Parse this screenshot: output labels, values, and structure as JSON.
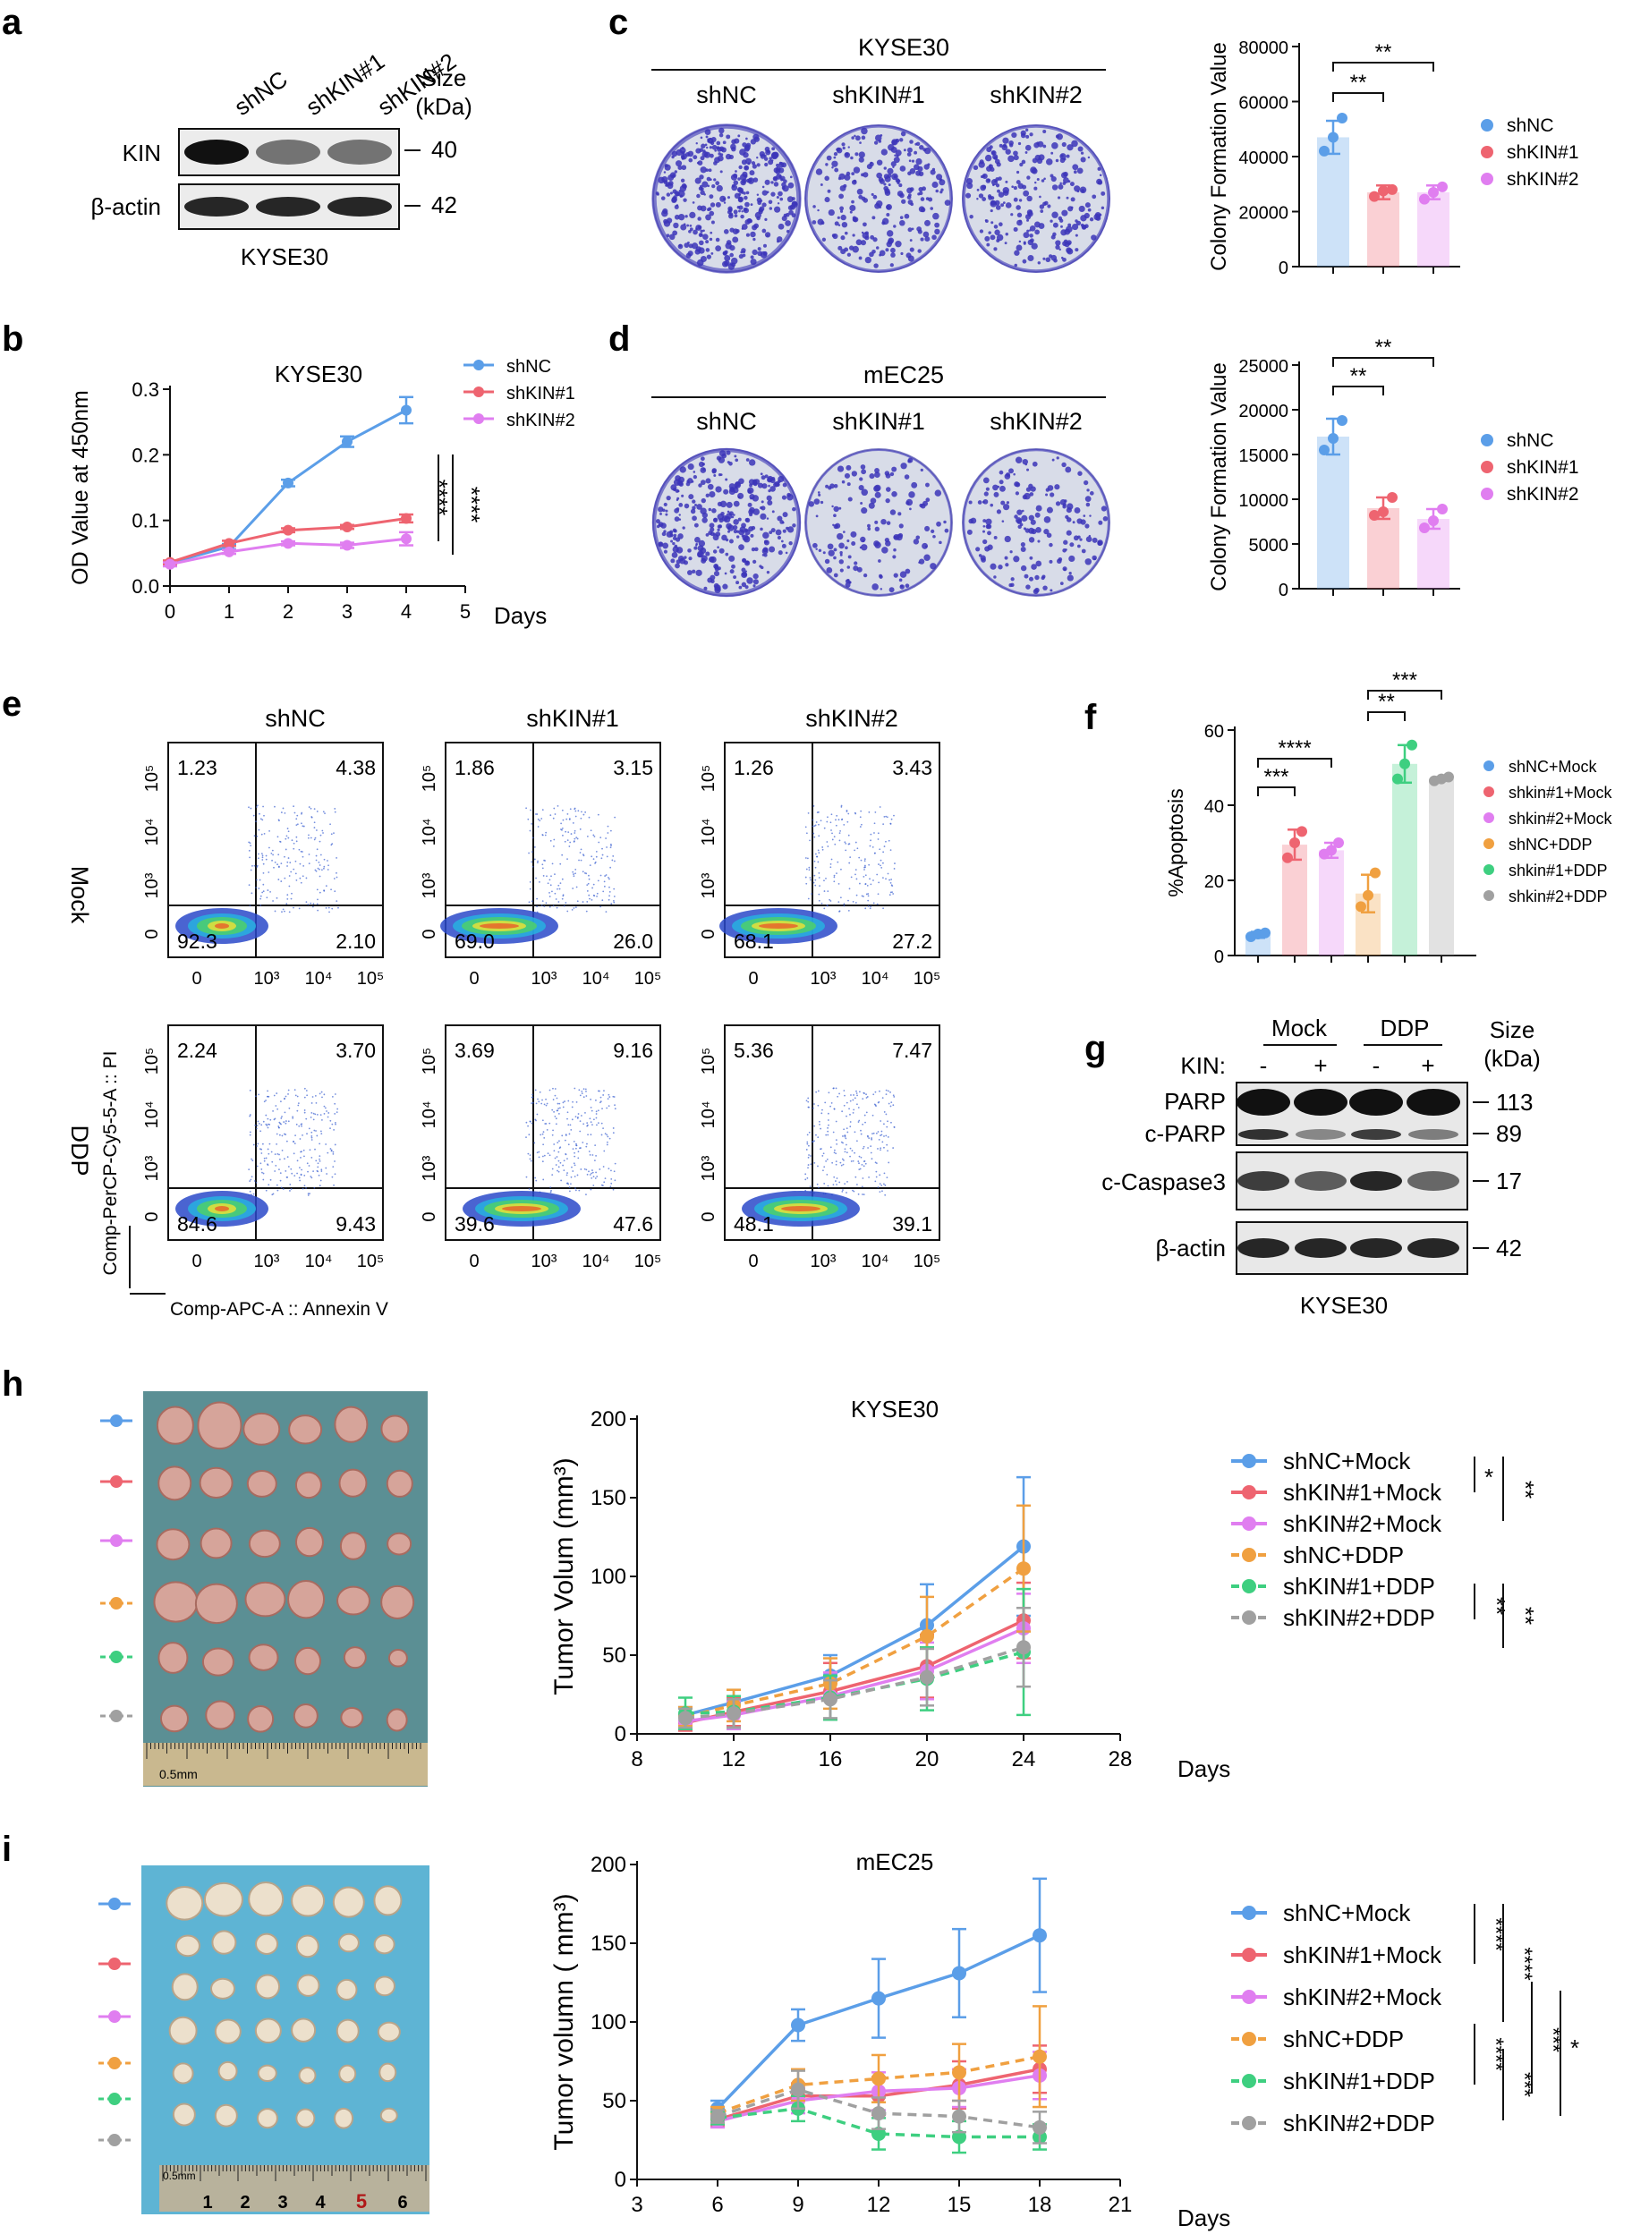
{
  "panels": {
    "a": {
      "letter": "a",
      "lanes": [
        "shNC",
        "shKIN#1",
        "shKIN#2"
      ],
      "size_header": [
        "Size",
        "(kDa)"
      ],
      "blots": [
        {
          "label": "KIN",
          "size": "40",
          "intensity": [
            1.0,
            0.55,
            0.55
          ]
        },
        {
          "label": "β-actin",
          "size": "42",
          "intensity": [
            0.9,
            0.9,
            0.9
          ]
        }
      ],
      "cell_line": "KYSE30"
    },
    "b": {
      "letter": "b",
      "sig": [
        "****",
        "****"
      ]
    },
    "c": {
      "letter": "c",
      "cell_line": "KYSE30",
      "plates": [
        "shNC",
        "shKIN#1",
        "shKIN#2"
      ],
      "plate_density": [
        0.9,
        0.55,
        0.6
      ],
      "sig": [
        "**",
        "**"
      ]
    },
    "d": {
      "letter": "d",
      "cell_line": "mEC25",
      "plates": [
        "shNC",
        "shKIN#1",
        "shKIN#2"
      ],
      "plate_density": [
        0.75,
        0.35,
        0.4
      ],
      "sig": [
        "**",
        "**"
      ]
    },
    "e": {
      "letter": "e",
      "columns": [
        "shNC",
        "shKIN#1",
        "shKIN#2"
      ],
      "rows": [
        "Mock",
        "DDP"
      ],
      "quadrants": [
        [
          [
            "1.23",
            "4.38",
            "92.3",
            "2.10"
          ],
          [
            "1.86",
            "3.15",
            "69.0",
            "26.0"
          ],
          [
            "1.26",
            "3.43",
            "68.1",
            "27.2"
          ]
        ],
        [
          [
            "2.24",
            "3.70",
            "84.6",
            "9.43"
          ],
          [
            "3.69",
            "9.16",
            "39.6",
            "47.6"
          ],
          [
            "5.36",
            "7.47",
            "48.1",
            "39.1"
          ]
        ]
      ],
      "y_ticks": [
        "0",
        "10³",
        "10⁴",
        "10⁵"
      ],
      "x_ticks": [
        "0",
        "10³",
        "10⁴",
        "10⁵"
      ],
      "y_axis_label": "Comp-PerCP-Cy5-5-A :: PI",
      "x_axis_label": "Comp-APC-A :: Annexin V"
    },
    "f": {
      "letter": "f",
      "sig": [
        "***",
        "****",
        "**",
        "***"
      ]
    },
    "g": {
      "letter": "g",
      "groups": [
        "Mock",
        "DDP"
      ],
      "kin_label": "KIN:",
      "kin_states": [
        "-",
        "+",
        "-",
        "+"
      ],
      "size_header": [
        "Size",
        "(kDa)"
      ],
      "blots": [
        {
          "labels": [
            "PARP",
            "c-PARP"
          ],
          "sizes": [
            "113",
            "89"
          ]
        },
        {
          "labels": [
            "c-Caspase3"
          ],
          "sizes": [
            "17"
          ]
        },
        {
          "labels": [
            "β-actin"
          ],
          "sizes": [
            "42"
          ]
        }
      ],
      "cell_line": "KYSE30"
    },
    "h": {
      "letter": "h",
      "ruler_label": "0.5mm",
      "sig": [
        "*",
        "**",
        "**",
        "**"
      ]
    },
    "i": {
      "letter": "i",
      "ruler_label": "0.5mm",
      "ruler_numbers": [
        "1",
        "2",
        "3",
        "4",
        "5",
        "6"
      ],
      "sig": [
        "****",
        "****",
        "***",
        "*",
        "****",
        "***"
      ]
    }
  },
  "colors": {
    "blue": "#5b9ee8",
    "red": "#ee6470",
    "magenta": "#e07ef0",
    "orange": "#f0a040",
    "green": "#3ecf80",
    "gray": "#a0a0a0",
    "plate": "#3c35b8",
    "tissue_bg_h": "#5b8f94",
    "tissue_bg_i": "#5eb4d4"
  },
  "chart_data": [
    {
      "id": "b",
      "type": "line",
      "title": "KYSE30",
      "xlabel": "Days",
      "ylabel": "OD Value at 450nm",
      "xlim": [
        0,
        5
      ],
      "ylim": [
        0,
        0.3
      ],
      "x_ticks": [
        0,
        1,
        2,
        3,
        4,
        5
      ],
      "y_ticks": [
        0.0,
        0.1,
        0.2,
        0.3
      ],
      "x": [
        0,
        1,
        2,
        3,
        4
      ],
      "series": [
        {
          "name": "shNC",
          "values": [
            0.035,
            0.06,
            0.157,
            0.22,
            0.268
          ],
          "err": [
            0.003,
            0.004,
            0.005,
            0.008,
            0.02
          ]
        },
        {
          "name": "shKIN#1",
          "values": [
            0.036,
            0.065,
            0.085,
            0.09,
            0.103
          ],
          "err": [
            0.003,
            0.004,
            0.003,
            0.003,
            0.006
          ]
        },
        {
          "name": "shKIN#2",
          "values": [
            0.033,
            0.052,
            0.065,
            0.062,
            0.072
          ],
          "err": [
            0.003,
            0.003,
            0.003,
            0.004,
            0.01
          ]
        }
      ]
    },
    {
      "id": "c",
      "type": "bar",
      "title": "",
      "ylabel": "Colony Formation Value",
      "ylim": [
        0,
        80000
      ],
      "y_ticks": [
        0,
        20000,
        40000,
        60000,
        80000
      ],
      "categories": [
        "shNC",
        "shKIN#1",
        "shKIN#2"
      ],
      "values": [
        47000,
        27000,
        27000
      ],
      "err": [
        6000,
        2500,
        2500
      ],
      "points": [
        [
          42000,
          47000,
          54000
        ],
        [
          25500,
          27500,
          28000
        ],
        [
          24500,
          27000,
          29000
        ]
      ]
    },
    {
      "id": "d",
      "type": "bar",
      "title": "",
      "ylabel": "Colony Formation Value",
      "ylim": [
        0,
        25000
      ],
      "y_ticks": [
        0,
        5000,
        10000,
        15000,
        20000,
        25000
      ],
      "categories": [
        "shNC",
        "shKIN#1",
        "shKIN#2"
      ],
      "values": [
        17000,
        9000,
        7800
      ],
      "err": [
        2000,
        1200,
        1100
      ],
      "points": [
        [
          15500,
          16800,
          18800
        ],
        [
          8200,
          8600,
          10200
        ],
        [
          6800,
          7600,
          8900
        ]
      ]
    },
    {
      "id": "f",
      "type": "bar",
      "title": "",
      "ylabel": "%Apoptosis",
      "ylim": [
        0,
        60
      ],
      "y_ticks": [
        0,
        20,
        40,
        60
      ],
      "categories": [
        "shNC+Mock",
        "shkin#1+Mock",
        "shkin#2+Mock",
        "shNC+DDP",
        "shkin#1+DDP",
        "shkin#2+DDP"
      ],
      "values": [
        5.5,
        29.5,
        28,
        16.5,
        51,
        47
      ],
      "err": [
        0.8,
        4,
        2,
        5,
        5,
        0.5
      ],
      "points": [
        [
          5,
          5.7,
          6
        ],
        [
          26,
          30,
          33
        ],
        [
          27,
          28,
          30
        ],
        [
          13,
          16,
          22
        ],
        [
          47,
          51,
          56
        ],
        [
          46.5,
          47,
          47.5
        ]
      ]
    },
    {
      "id": "h",
      "type": "line",
      "title": "KYSE30",
      "xlabel": "Days",
      "ylabel": "Tumor Volum (mm³)",
      "xlim": [
        8,
        28
      ],
      "ylim": [
        0,
        200
      ],
      "x_ticks": [
        8,
        12,
        16,
        20,
        24,
        28
      ],
      "y_ticks": [
        0,
        50,
        100,
        150,
        200
      ],
      "x": [
        10,
        12,
        16,
        20,
        24
      ],
      "series": [
        {
          "name": "shNC+Mock",
          "values": [
            12,
            20,
            37,
            69,
            119
          ],
          "err": [
            5,
            8,
            13,
            26,
            44
          ],
          "dashed": false
        },
        {
          "name": "shKIN#1+Mock",
          "values": [
            7,
            14,
            27,
            43,
            72
          ],
          "err": [
            5,
            9,
            18,
            20,
            24
          ],
          "dashed": false
        },
        {
          "name": "shKIN#2+Mock",
          "values": [
            8,
            12,
            24,
            40,
            67
          ],
          "err": [
            5,
            9,
            15,
            18,
            22
          ],
          "dashed": false
        },
        {
          "name": "shNC+DDP",
          "values": [
            11,
            18,
            32,
            62,
            105
          ],
          "err": [
            6,
            10,
            16,
            25,
            40
          ],
          "dashed": true
        },
        {
          "name": "shKIN#1+DDP",
          "values": [
            13,
            14,
            23,
            35,
            52
          ],
          "err": [
            10,
            10,
            14,
            20,
            40
          ],
          "dashed": true
        },
        {
          "name": "shKIN#2+DDP",
          "values": [
            10,
            13,
            22,
            36,
            55
          ],
          "err": [
            6,
            9,
            12,
            18,
            25
          ],
          "dashed": true
        }
      ]
    },
    {
      "id": "i",
      "type": "line",
      "title": "mEC25",
      "xlabel": "Days",
      "ylabel": "Tumor volumn ( mm³)",
      "xlim": [
        3,
        21
      ],
      "ylim": [
        0,
        200
      ],
      "x_ticks": [
        3,
        6,
        9,
        12,
        15,
        18,
        21
      ],
      "y_ticks": [
        0,
        50,
        100,
        150,
        200
      ],
      "x": [
        6,
        9,
        12,
        15,
        18
      ],
      "series": [
        {
          "name": "shNC+Mock",
          "values": [
            45,
            98,
            115,
            131,
            155
          ],
          "err": [
            5,
            10,
            25,
            28,
            36
          ],
          "dashed": false
        },
        {
          "name": "shKIN#1+Mock",
          "values": [
            38,
            53,
            53,
            60,
            70
          ],
          "err": [
            4,
            8,
            12,
            15,
            15
          ],
          "dashed": false
        },
        {
          "name": "shKIN#2+Mock",
          "values": [
            37,
            50,
            56,
            58,
            66
          ],
          "err": [
            4,
            8,
            12,
            12,
            15
          ],
          "dashed": false
        },
        {
          "name": "shNC+DDP",
          "values": [
            42,
            60,
            64,
            68,
            78
          ],
          "err": [
            4,
            10,
            15,
            18,
            32
          ],
          "dashed": true
        },
        {
          "name": "shKIN#1+DDP",
          "values": [
            39,
            45,
            29,
            27,
            27
          ],
          "err": [
            4,
            8,
            10,
            10,
            8
          ],
          "dashed": true
        },
        {
          "name": "shKIN#2+DDP",
          "values": [
            40,
            57,
            42,
            40,
            33
          ],
          "err": [
            4,
            12,
            10,
            10,
            10
          ],
          "dashed": true
        }
      ]
    }
  ]
}
